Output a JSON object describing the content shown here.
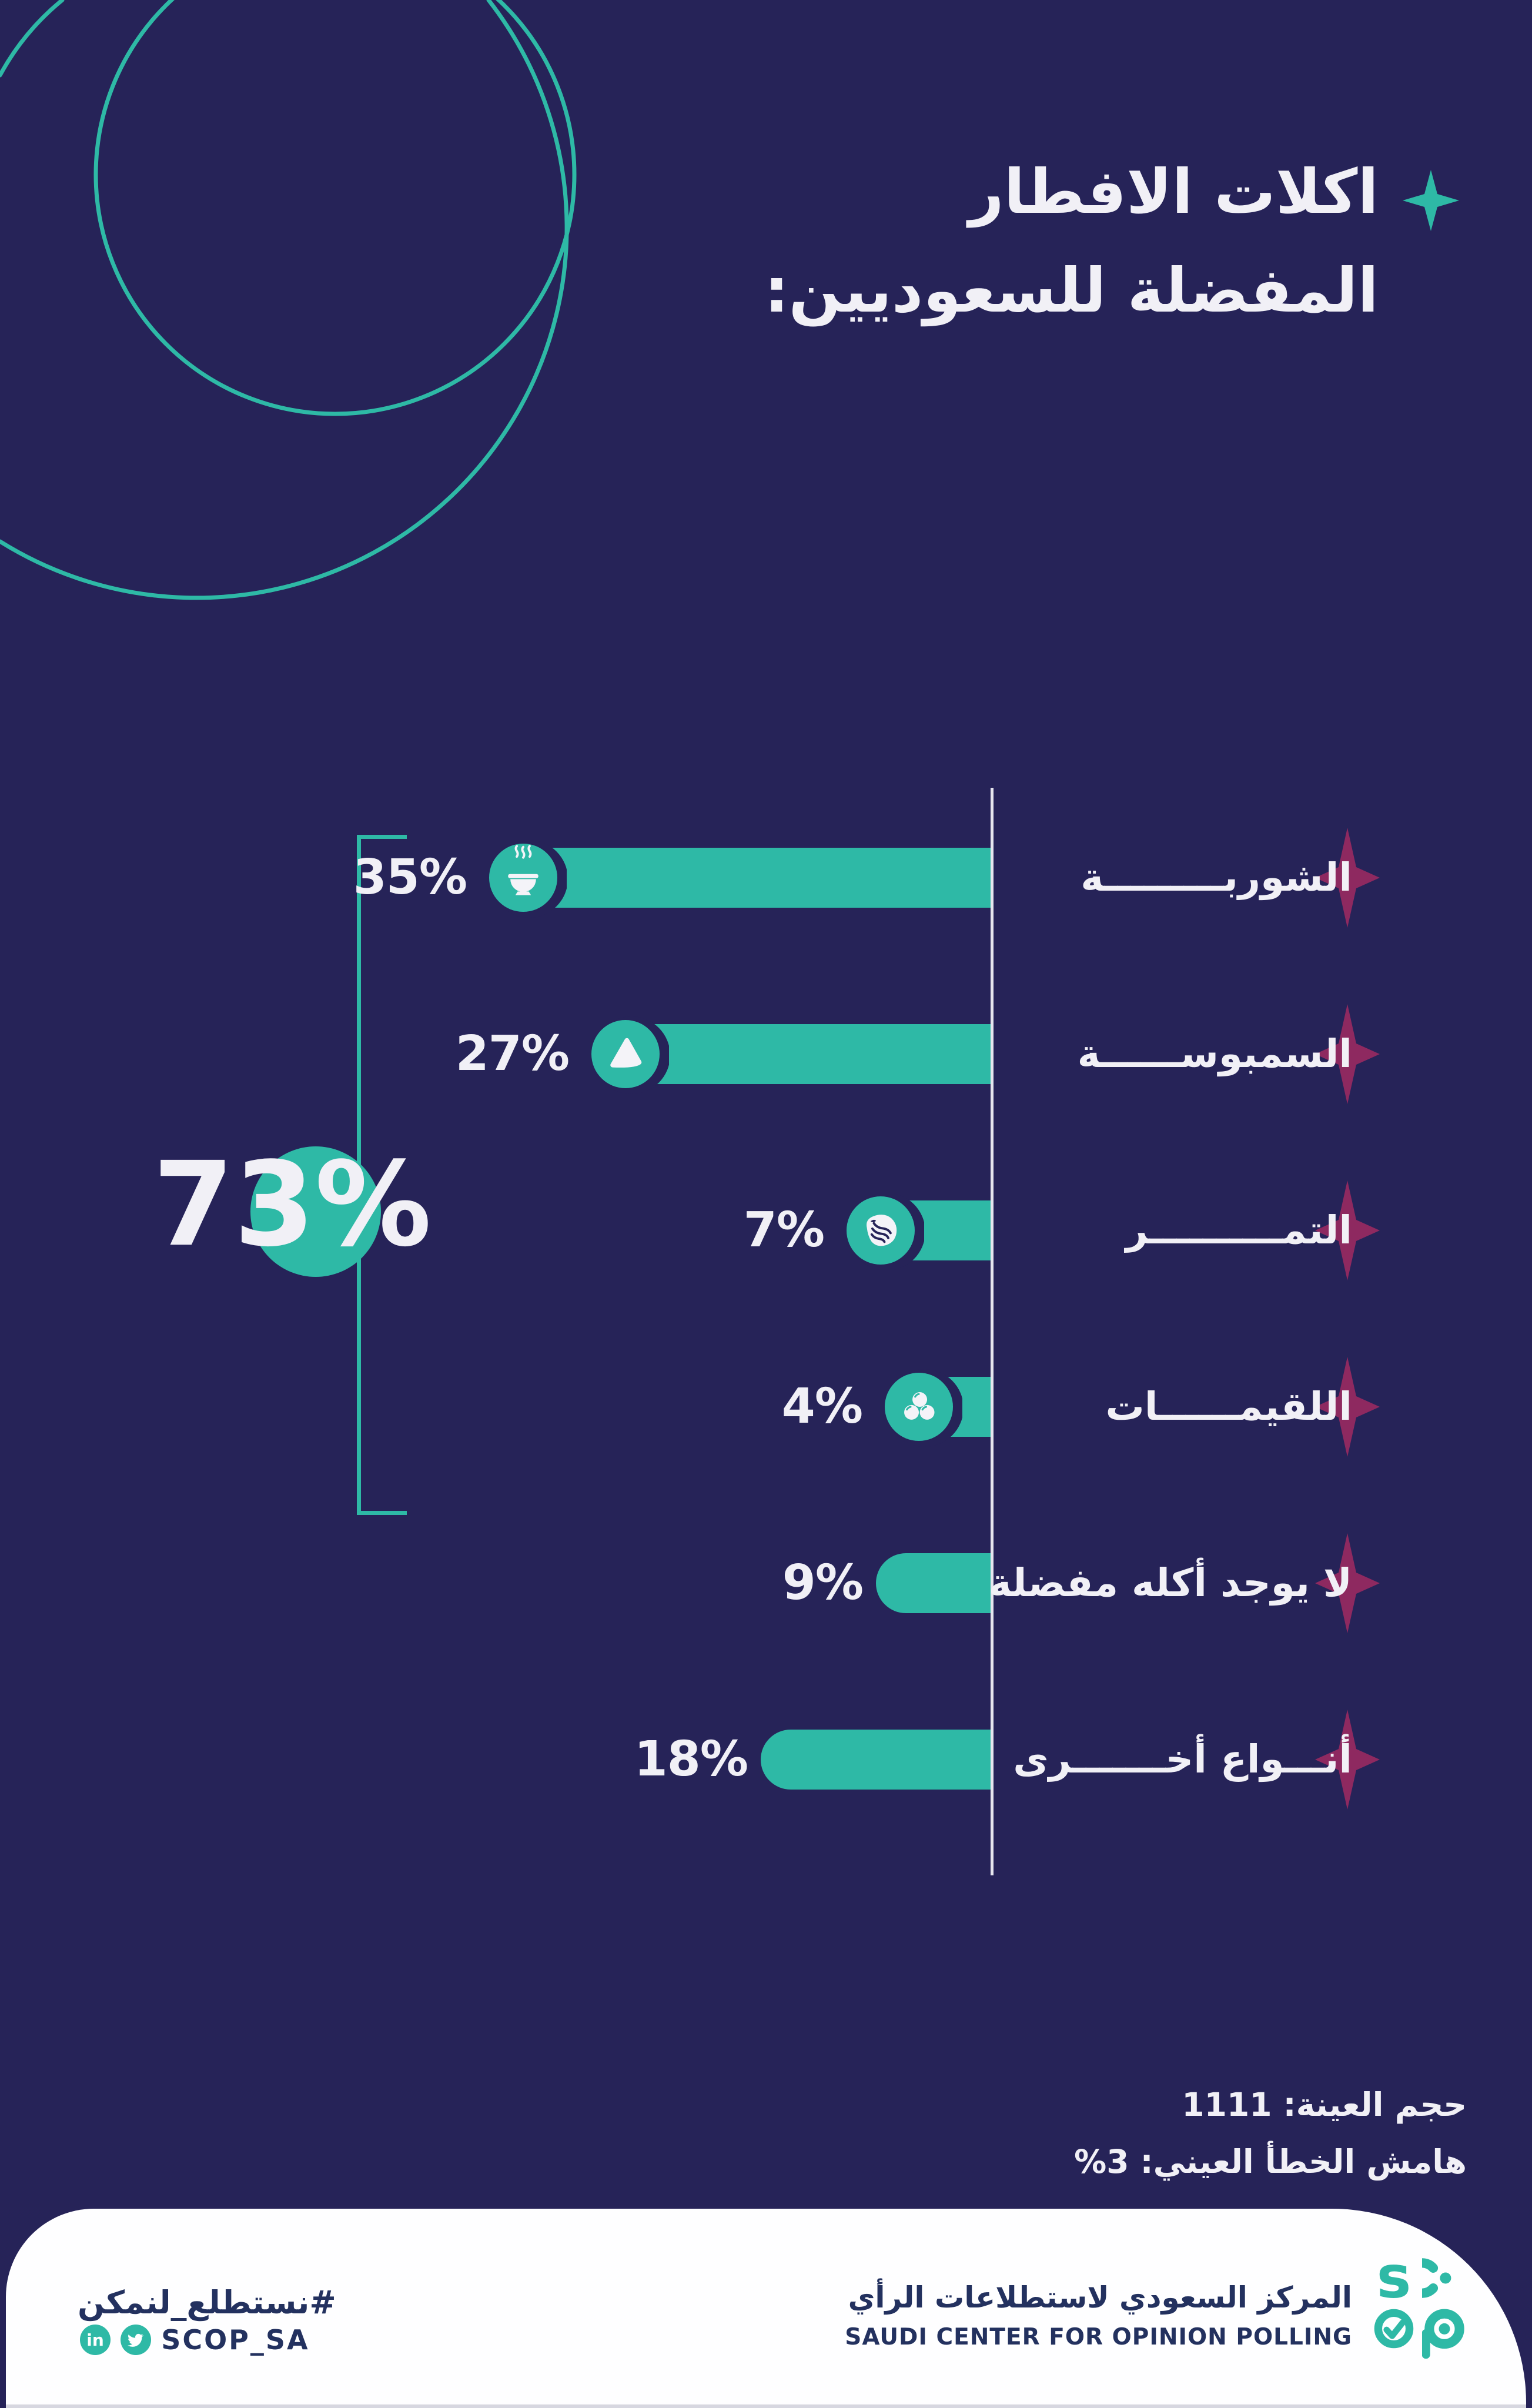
{
  "colors": {
    "background_navy": "#262358",
    "teal": "#2EB9A6",
    "magenta": "#8E2960",
    "text_white": "#F1F0F6",
    "axis_gray": "#E6E6EE",
    "footer_navy": "#23315F"
  },
  "title": {
    "line1": "اكلات الافطار",
    "line2": "المفضلة للسعوديين:",
    "star_icon": "sparkle-4point-teal"
  },
  "chart_data": {
    "type": "bar",
    "orientation": "horizontal-rtl",
    "title": "اكلات الافطار المفضلة للسعوديين",
    "unit": "%",
    "categories": [
      "الشوربـــــــــة",
      "السمبوســــــة",
      "التمــــــــــر",
      "اللقيمــــــات",
      "لا يوجد أكله مفضلة",
      "أنـــواع أخـــــــرى"
    ],
    "values": [
      35,
      27,
      7,
      4,
      9,
      18
    ],
    "value_labels": [
      "35%",
      "27%",
      "7%",
      "4%",
      "9%",
      "18%"
    ],
    "icons": [
      "soup-bowl-icon",
      "samosa-icon",
      "dates-icon",
      "luqaimat-icon",
      "",
      ""
    ],
    "legend": "none",
    "grid": "off",
    "baseline": "right-vertical-line",
    "group_total": {
      "label": "73%",
      "value": 73,
      "covers_categories": [
        "الشوربة",
        "السمبوسة",
        "التمر",
        "اللقيمات"
      ]
    }
  },
  "footnote": {
    "sample_size": "حجم العينة: 1111",
    "margin_of_error": "هامش الخطأ العيني: 3%"
  },
  "footer": {
    "org_name_ar": "المركز السعودي لاستطلاعات الرأي",
    "org_name_en": "SAUDI CENTER FOR OPINION POLLING",
    "logo": "scop-logo",
    "hashtag": "#نستطلع_لنمكن",
    "social_handle": "SCOP_SA",
    "social_icons": [
      "linkedin-icon",
      "twitter-icon"
    ]
  }
}
